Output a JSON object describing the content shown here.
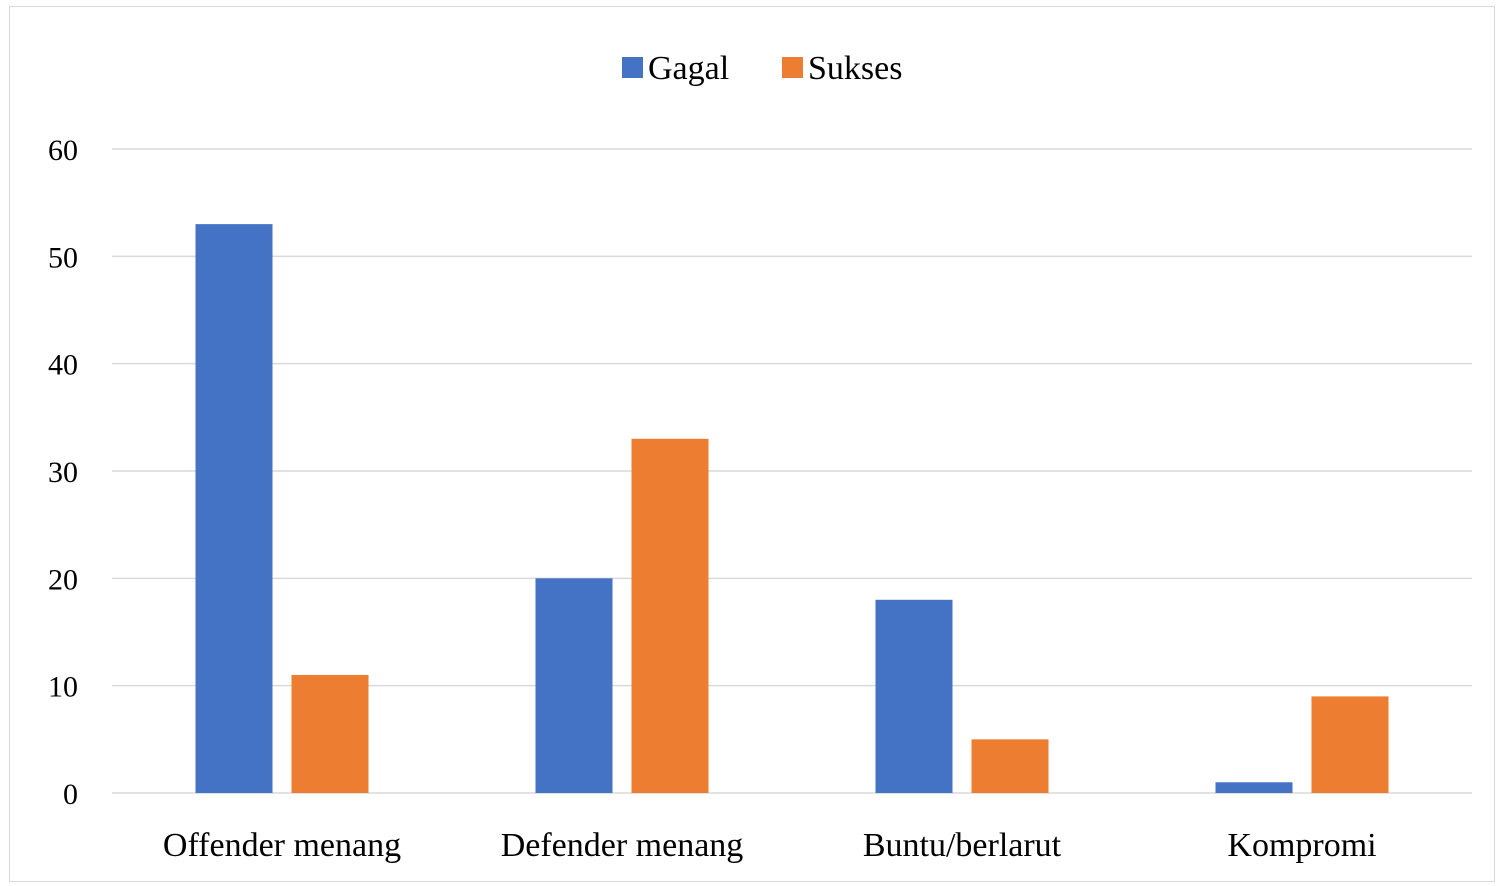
{
  "chart_data": {
    "type": "bar",
    "categories": [
      "Offender menang",
      "Defender menang",
      "Buntu/berlarut",
      "Kompromi"
    ],
    "series": [
      {
        "name": "Gagal",
        "values": [
          53,
          20,
          18,
          1
        ],
        "color": "#4472C4"
      },
      {
        "name": "Sukses",
        "values": [
          11,
          33,
          5,
          9
        ],
        "color": "#ED7D31"
      }
    ],
    "title": "",
    "xlabel": "",
    "ylabel": "",
    "ylim": [
      0,
      60
    ],
    "yticks": [
      "0",
      "10",
      "20",
      "30",
      "40",
      "50",
      "60"
    ],
    "grid": true,
    "legend_position": "top"
  }
}
